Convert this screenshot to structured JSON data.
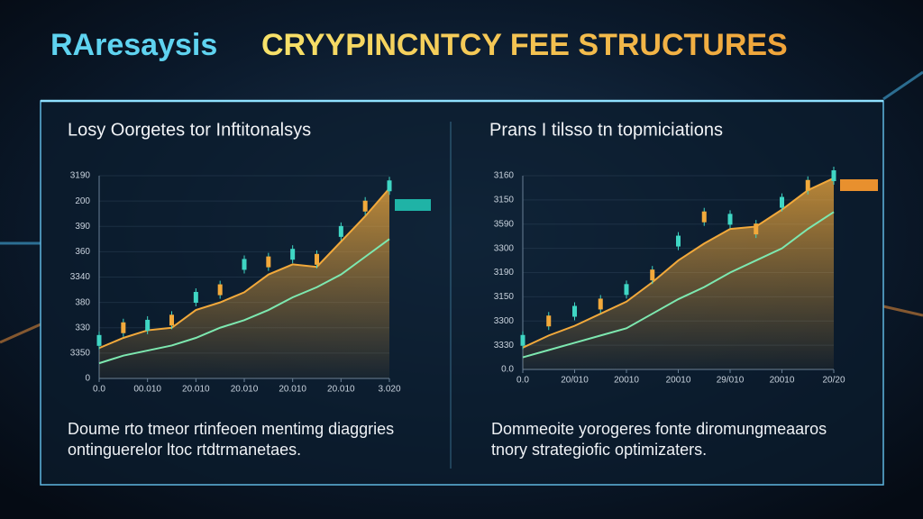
{
  "title_parts": [
    "RAresaysis",
    "CRYYPINCNTCY FEE STRUCTURES"
  ],
  "chart_data": [
    {
      "type": "line",
      "title": "Losy Oorgetes tor Inftitonalsys",
      "caption": [
        "Doume rto tmeor rtinfeoen mentimg diaggries",
        "ontinguerelor ltoc rtdtrmanetaes."
      ],
      "x": [
        0,
        0.5,
        1,
        1.5,
        2,
        2.5,
        3,
        3.5,
        4,
        4.5,
        5,
        5.5,
        6
      ],
      "xlim": [
        0,
        6
      ],
      "xticks": [
        {
          "value": 0,
          "label": "0.0"
        },
        {
          "value": 1,
          "label": "00.010"
        },
        {
          "value": 2,
          "label": "20.010"
        },
        {
          "value": 3,
          "label": "20.010"
        },
        {
          "value": 4,
          "label": "20.010"
        },
        {
          "value": 5,
          "label": "20.010"
        },
        {
          "value": 6,
          "label": "3.020"
        }
      ],
      "ylim": [
        0,
        8
      ],
      "yticks": [
        {
          "value": 8,
          "label": "3190"
        },
        {
          "value": 7,
          "label": "200"
        },
        {
          "value": 6,
          "label": "390"
        },
        {
          "value": 5,
          "label": "360"
        },
        {
          "value": 4,
          "label": "3340"
        },
        {
          "value": 3,
          "label": "380"
        },
        {
          "value": 2,
          "label": "330"
        },
        {
          "value": 1,
          "label": "3350"
        },
        0
      ],
      "series": [
        {
          "color": "#f2a93b",
          "style": "area",
          "values": [
            1.2,
            1.6,
            1.9,
            2.0,
            2.7,
            3.0,
            3.4,
            4.1,
            4.5,
            4.4,
            5.4,
            6.4,
            7.5
          ]
        },
        {
          "color": "#7de8b0",
          "style": "line",
          "values": [
            0.6,
            0.9,
            1.1,
            1.3,
            1.6,
            2.0,
            2.3,
            2.7,
            3.2,
            3.6,
            4.1,
            4.8,
            5.5
          ]
        },
        {
          "color": "#3fd6c4",
          "style": "candle",
          "values": [
            1.5,
            2.0,
            2.1,
            2.3,
            3.2,
            3.5,
            4.5,
            4.6,
            4.9,
            4.7,
            5.8,
            6.8,
            7.6
          ]
        }
      ]
    },
    {
      "type": "line",
      "title": "Prans I tilsso tn topmiciations",
      "caption": [
        "Dommeoite yorogeres fonte diromungmeaaros",
        "tnory strategiofic optimizaters."
      ],
      "x": [
        0,
        0.5,
        1,
        1.5,
        2,
        2.5,
        3,
        3.5,
        4,
        4.5,
        5,
        5.5,
        6
      ],
      "xlim": [
        0,
        6
      ],
      "xticks": [
        {
          "value": 0,
          "label": "0.0"
        },
        {
          "value": 1,
          "label": "20/010"
        },
        {
          "value": 2,
          "label": "20010"
        },
        {
          "value": 3,
          "label": "20010"
        },
        {
          "value": 4,
          "label": "29/010"
        },
        {
          "value": 5,
          "label": "20010"
        },
        {
          "value": 6,
          "label": "20/20"
        }
      ],
      "ylim": [
        0,
        8
      ],
      "yticks": [
        {
          "value": 8,
          "label": "3160"
        },
        {
          "value": 7,
          "label": "3150"
        },
        {
          "value": 6,
          "label": "3590"
        },
        {
          "value": 5,
          "label": "3300"
        },
        {
          "value": 4,
          "label": "3190"
        },
        {
          "value": 3,
          "label": "3150"
        },
        {
          "value": 2,
          "label": "3300"
        },
        {
          "value": 1,
          "label": "3330"
        },
        {
          "value": 0,
          "label": "0.0"
        }
      ],
      "series": [
        {
          "color": "#f2a93b",
          "style": "area",
          "values": [
            0.9,
            1.4,
            1.8,
            2.3,
            2.8,
            3.6,
            4.5,
            5.2,
            5.8,
            5.9,
            6.6,
            7.4,
            7.9
          ]
        },
        {
          "color": "#7de8b0",
          "style": "line",
          "values": [
            0.5,
            0.8,
            1.1,
            1.4,
            1.7,
            2.3,
            2.9,
            3.4,
            4.0,
            4.5,
            5.0,
            5.8,
            6.5
          ]
        },
        {
          "color": "#3fd6c4",
          "style": "candle",
          "values": [
            1.2,
            2.0,
            2.4,
            2.7,
            3.3,
            3.9,
            5.3,
            6.3,
            6.2,
            5.8,
            6.9,
            7.6,
            8.0
          ]
        }
      ]
    }
  ]
}
